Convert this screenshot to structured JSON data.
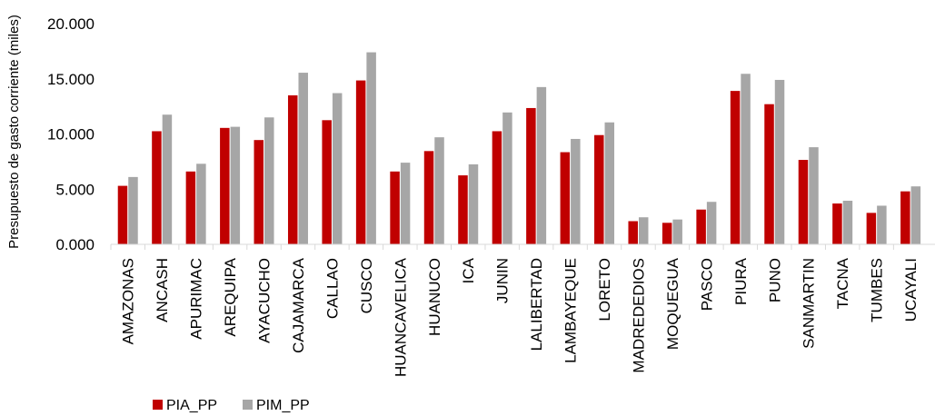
{
  "chart_data": {
    "type": "bar",
    "ylabel": "Presupuesto de gasto corriente (miles)",
    "ylim": [
      0,
      20000
    ],
    "yticks": [
      {
        "value": 0,
        "label": "0.000"
      },
      {
        "value": 5000,
        "label": "5.000"
      },
      {
        "value": 10000,
        "label": "10.000"
      },
      {
        "value": 15000,
        "label": "15.000"
      },
      {
        "value": 20000,
        "label": "20.000"
      }
    ],
    "categories": [
      "AMAZONAS",
      "ANCASH",
      "APURIMAC",
      "AREQUIPA",
      "AYACUCHO",
      "CAJAMARCA",
      "CALLAO",
      "CUSCO",
      "HUANCAVELICA",
      "HUANUCO",
      "ICA",
      "JUNIN",
      "LALIBERTAD",
      "LAMBAYEQUE",
      "LORETO",
      "MADREDEDIOS",
      "MOQUEGUA",
      "PASCO",
      "PIURA",
      "PUNO",
      "SANMARTIN",
      "TACNA",
      "TUMBES",
      "UCAYALI"
    ],
    "series": [
      {
        "name": "PIA_PP",
        "color": "#C00000",
        "values": [
          5300,
          10250,
          6600,
          10550,
          9450,
          13500,
          11250,
          14850,
          6600,
          8450,
          6250,
          10250,
          12350,
          8350,
          9900,
          2100,
          1950,
          3150,
          13900,
          12700,
          7650,
          3700,
          2850,
          4800
        ]
      },
      {
        "name": "PIM_PP",
        "color": "#A6A6A6",
        "values": [
          6100,
          11750,
          7300,
          10650,
          11500,
          15550,
          13700,
          17400,
          7400,
          9700,
          7250,
          11950,
          14250,
          9550,
          11050,
          2450,
          2250,
          3850,
          15450,
          14900,
          8800,
          3950,
          3500,
          5250
        ]
      }
    ],
    "grid": false,
    "legend": "bottom-left"
  }
}
